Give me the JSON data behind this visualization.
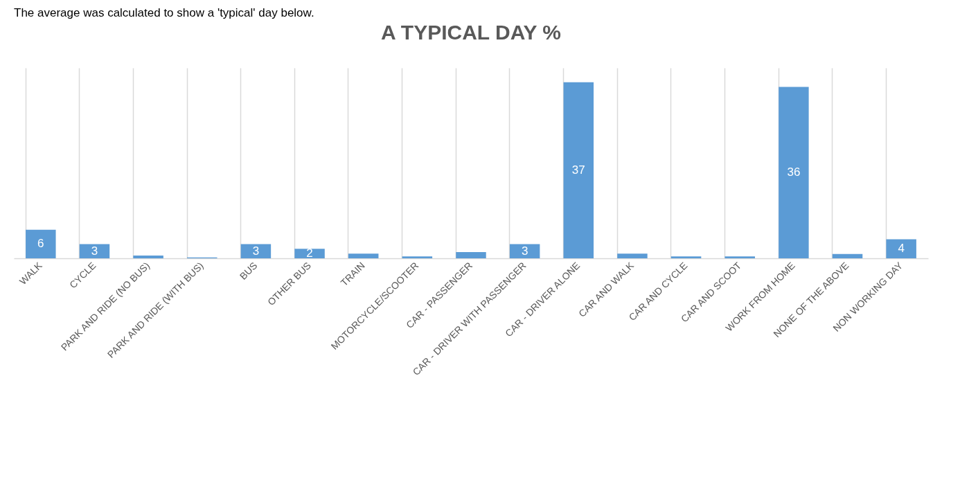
{
  "chart_data": {
    "type": "bar",
    "title": "A TYPICAL DAY %",
    "annotations": [
      "The average was calculated to show a 'typical' day below."
    ],
    "categories": [
      "WALK",
      "CYCLE",
      "PARK AND RIDE (NO BUS)",
      "PARK AND RIDE (WITH BUS)",
      "BUS",
      "OTHER BUS",
      "TRAIN",
      "MOTORCYCLE/SCOOTER",
      "CAR - PASSENGER",
      "CAR - DRIVER WITH PASSENGER",
      "CAR - DRIVER ALONE",
      "CAR AND WALK",
      "CAR AND CYCLE",
      "CAR AND SCOOT",
      "WORK FROM HOME",
      "NONE OF THE ABOVE",
      "NON WORKING DAY"
    ],
    "values": [
      6,
      3,
      0.6,
      0.2,
      3,
      2,
      1,
      0.4,
      1.3,
      3,
      37,
      1,
      0.4,
      0.4,
      36,
      0.9,
      4
    ],
    "value_labels": [
      "6",
      "3",
      null,
      null,
      "3",
      "2",
      null,
      null,
      null,
      "3",
      "37",
      null,
      null,
      null,
      "36",
      null,
      "4"
    ],
    "color": "#5b9bd5",
    "ylim": [
      0,
      40
    ],
    "tick_labels": "x",
    "grid": "x"
  }
}
